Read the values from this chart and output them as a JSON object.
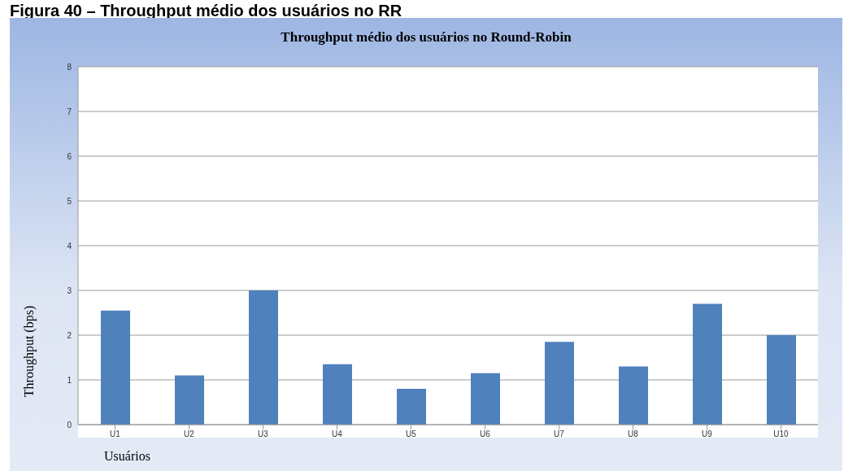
{
  "chart_data": {
    "type": "bar",
    "title": "Throughput médio dos usuários no Round-Robin",
    "annotations": [
      "Figura 40 – Throughput médio dos usuários no RR"
    ],
    "xlabel": "Usuários",
    "ylabel": "Throughput (bps)",
    "categories": [
      "U1",
      "U2",
      "U3",
      "U4",
      "U5",
      "U6",
      "U7",
      "U8",
      "U9",
      "U10"
    ],
    "values": [
      2.55,
      1.1,
      3.0,
      1.35,
      0.8,
      1.15,
      1.85,
      1.3,
      2.7,
      2.0
    ],
    "color": "#4f81bd",
    "ylim": [
      0,
      8
    ],
    "yticks": [
      0,
      1,
      2,
      3,
      4,
      5,
      6,
      7,
      8
    ],
    "grid": "y",
    "legend": false
  }
}
